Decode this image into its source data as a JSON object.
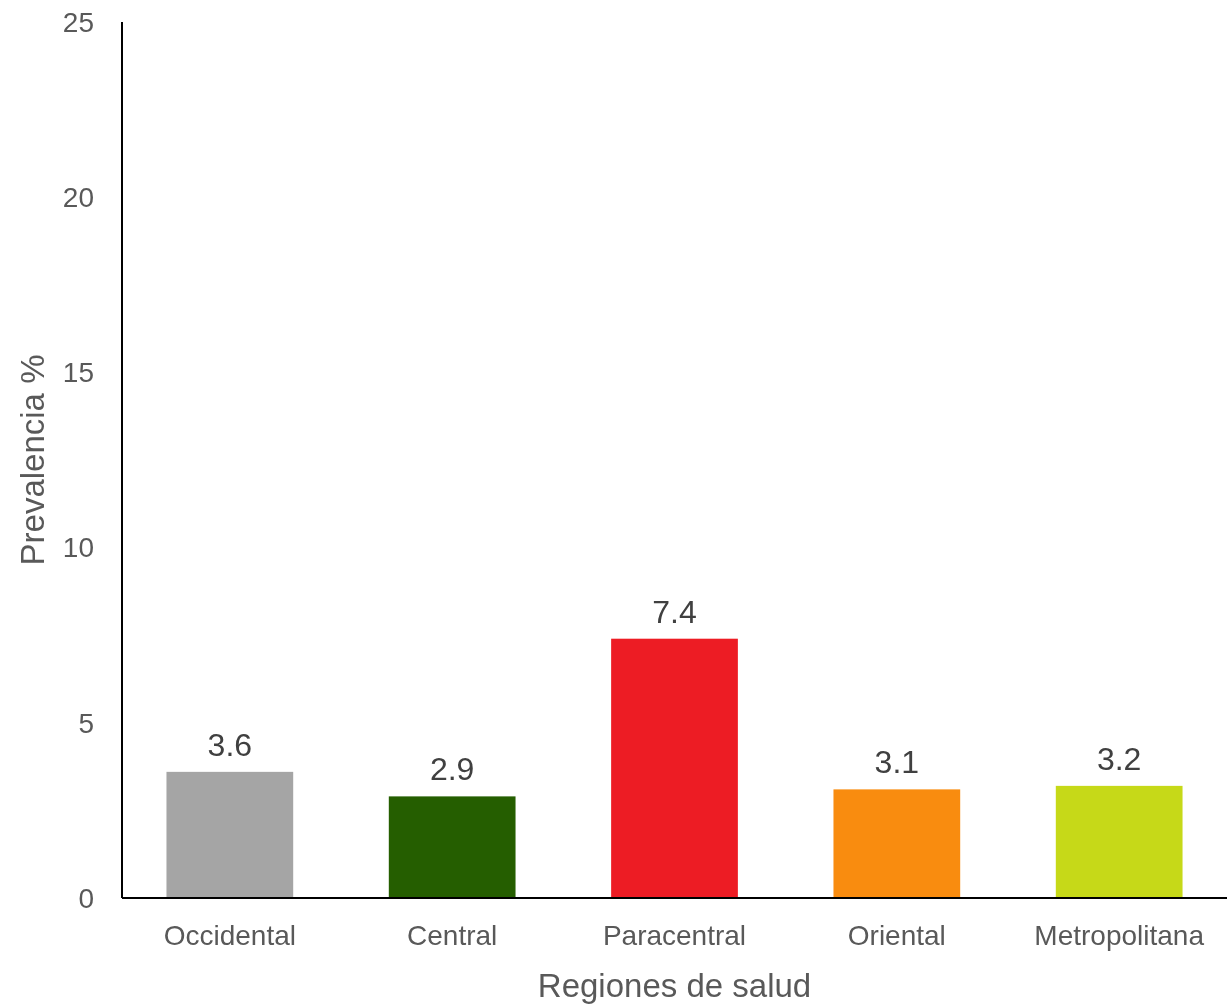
{
  "chart_data": {
    "type": "bar",
    "xlabel": "Regiones de salud",
    "ylabel": "Prevalencia %",
    "categories": [
      "Occidental",
      "Central",
      "Paracentral",
      "Oriental",
      "Metropolitana"
    ],
    "values": [
      3.6,
      2.9,
      7.4,
      3.1,
      3.2
    ],
    "colors": [
      "#a5a5a5",
      "#255e00",
      "#ed1c24",
      "#f98c0f",
      "#c6d918"
    ],
    "ylim": [
      0,
      25
    ],
    "yticks": [
      0,
      5,
      10,
      15,
      20,
      25
    ],
    "data_labels": true,
    "grid": false
  }
}
